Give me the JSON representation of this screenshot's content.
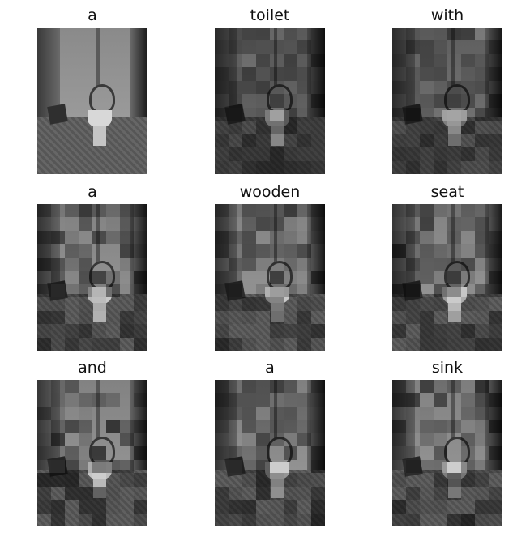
{
  "panels": [
    {
      "title": "a",
      "overlay": false,
      "level": 0.0
    },
    {
      "title": "toilet",
      "overlay": true,
      "level": 0.18
    },
    {
      "title": "with",
      "overlay": true,
      "level": 0.24
    },
    {
      "title": "a",
      "overlay": true,
      "level": 0.42
    },
    {
      "title": "wooden",
      "overlay": true,
      "level": 0.38
    },
    {
      "title": "seat",
      "overlay": true,
      "level": 0.4
    },
    {
      "title": "and",
      "overlay": true,
      "level": 0.45
    },
    {
      "title": "a",
      "overlay": true,
      "level": 0.4
    },
    {
      "title": "sink",
      "overlay": true,
      "level": 0.44
    }
  ]
}
